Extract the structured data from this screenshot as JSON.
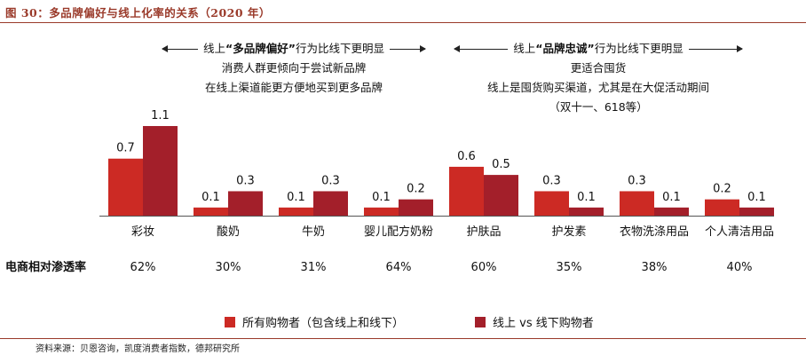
{
  "figure_title": "图 30：多品牌偏好与线上化率的关系（2020 年）",
  "left_panel": {
    "head_prefix": "线上",
    "head_emph": "“多品牌偏好”",
    "head_suffix": "行为比线下更明显",
    "lines": [
      "消费人群更倾向于尝试新品牌",
      "在线上渠道能更方便地买到更多品牌"
    ]
  },
  "right_panel": {
    "head_prefix": "线上",
    "head_emph": "“品牌忠诚”",
    "head_suffix": "行为比线下更明显",
    "lines": [
      "更适合囤货",
      "线上是囤货购买渠道，尤其是在大促活动期间",
      "（双十一、618等）"
    ]
  },
  "penetration_title": "电商相对渗透率",
  "colors": {
    "all_shoppers": "#cc2a24",
    "online_vs_offline": "#a31f2a",
    "accent": "#9a3a2a"
  },
  "chart_data": {
    "type": "bar",
    "title": "多品牌偏好与线上化率的关系（2020 年）",
    "categories": [
      "彩妆",
      "酸奶",
      "牛奶",
      "婴儿配方奶粉",
      "护肤品",
      "护发素",
      "衣物洗涤用品",
      "个人清洁用品"
    ],
    "series": [
      {
        "name": "所有购物者（包含线上和线下）",
        "values": [
          0.7,
          0.1,
          0.1,
          0.1,
          0.6,
          0.3,
          0.3,
          0.2
        ]
      },
      {
        "name": "线上 vs 线下购物者",
        "values": [
          1.1,
          0.3,
          0.3,
          0.2,
          0.5,
          0.1,
          0.1,
          0.1
        ]
      }
    ],
    "penetration": [
      "62%",
      "30%",
      "31%",
      "64%",
      "60%",
      "35%",
      "38%",
      "40%"
    ],
    "ylim": [
      0,
      1.1
    ],
    "xlabel": "",
    "ylabel": ""
  },
  "source": "资料来源：贝恩咨询，凯度消费者指数，德邦研究所"
}
